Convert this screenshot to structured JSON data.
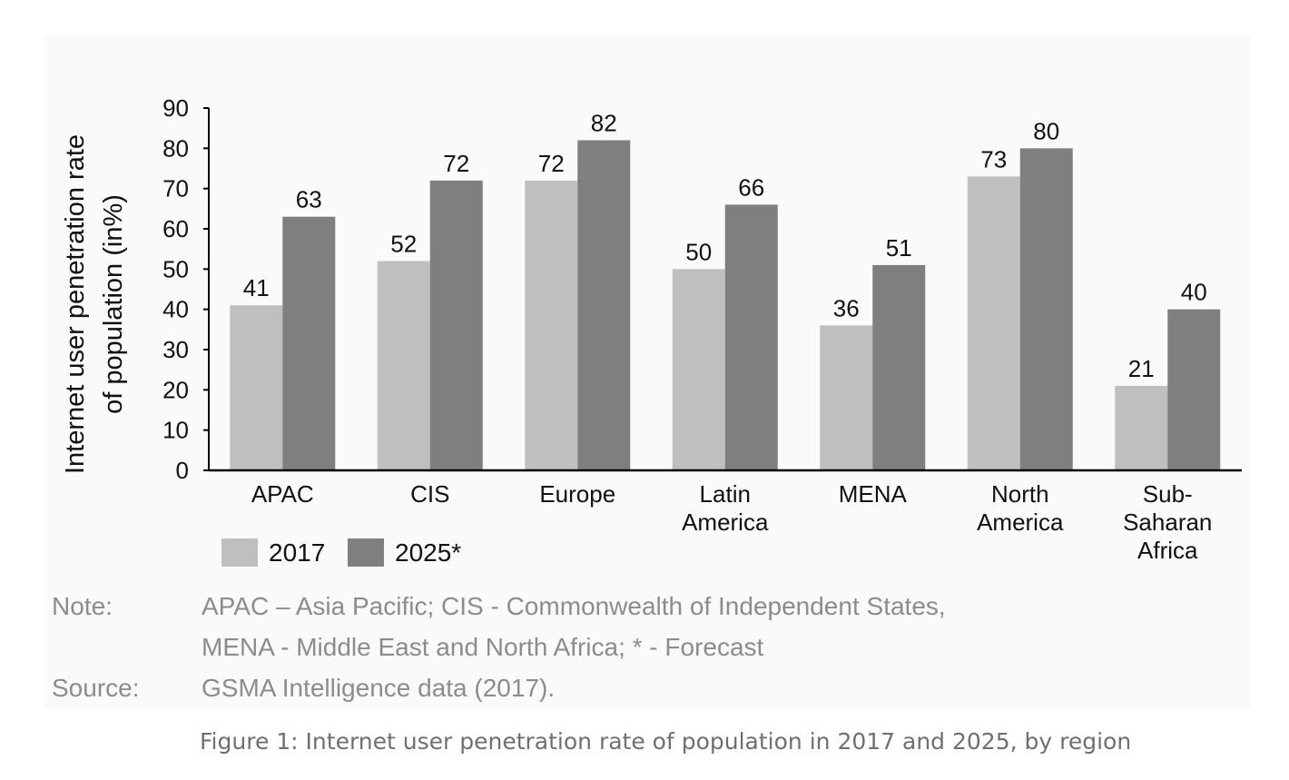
{
  "chart_data": {
    "type": "bar",
    "categories": [
      [
        "APAC"
      ],
      [
        "CIS"
      ],
      [
        "Europe"
      ],
      [
        "Latin",
        "America"
      ],
      [
        "MENA"
      ],
      [
        "North",
        "America"
      ],
      [
        "Sub-",
        "Saharan",
        "Africa"
      ]
    ],
    "series": [
      {
        "name": "2017",
        "color": "#bfbfbf",
        "values": [
          41,
          52,
          72,
          50,
          36,
          73,
          21
        ]
      },
      {
        "name": "2025*",
        "color": "#7f7f7f",
        "values": [
          63,
          72,
          82,
          66,
          51,
          80,
          40
        ]
      }
    ],
    "ylabel": [
      "Internet user penetration rate",
      "of population (in%)"
    ],
    "xlabel": "",
    "ylim": [
      0,
      90
    ],
    "yticks": [
      0,
      10,
      20,
      30,
      40,
      50,
      60,
      70,
      80,
      90
    ],
    "grid": false,
    "legend": "bottom-left"
  },
  "notes": {
    "note_label": "Note:",
    "note_line1": "APAC – Asia Pacific; CIS - Commonwealth of Independent States,",
    "note_line2": "MENA - Middle East and North Africa; * - Forecast",
    "source_label": "Source:",
    "source_text": "GSMA Intelligence data (2017)."
  },
  "caption": "Figure 1: Internet user penetration rate of population in 2017 and 2025, by region"
}
